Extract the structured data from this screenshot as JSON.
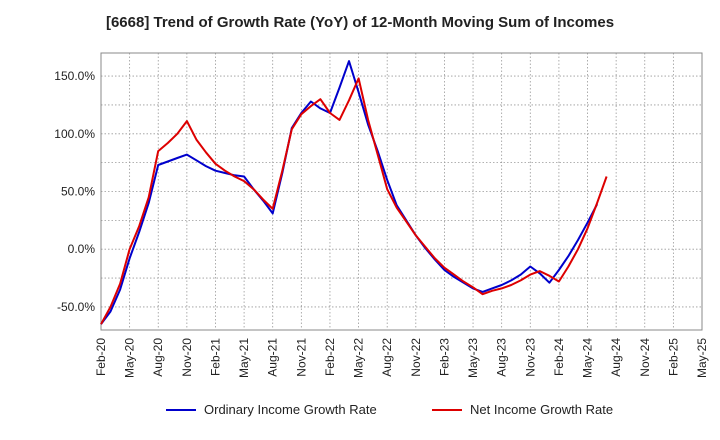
{
  "chart_data": {
    "type": "line",
    "title": "[6668]  Trend of Growth Rate (YoY) of 12-Month Moving Sum of Incomes",
    "xlabel": "",
    "ylabel": "",
    "ylim": [
      -70,
      170
    ],
    "y_ticks": [
      150,
      100,
      50,
      0,
      -50
    ],
    "y_tick_labels": [
      "150.0%",
      "100.0%",
      "50.0%",
      "0.0%",
      "-50.0%"
    ],
    "x_tick_labels": [
      "Feb-20",
      "May-20",
      "Aug-20",
      "Nov-20",
      "Feb-21",
      "May-21",
      "Aug-21",
      "Nov-21",
      "Feb-22",
      "May-22",
      "Aug-22",
      "Nov-22",
      "Feb-23",
      "May-23",
      "Aug-23",
      "Nov-23",
      "Feb-24",
      "May-24",
      "Aug-24",
      "Nov-24",
      "Feb-25",
      "May-25"
    ],
    "grid": true,
    "legend_position": "bottom",
    "series": [
      {
        "name": "Ordinary Income Growth Rate",
        "color": "#0000cc",
        "values": [
          -65,
          -54,
          -35,
          -8,
          15,
          40,
          73,
          76,
          79,
          82,
          77,
          72,
          68,
          66,
          64,
          63,
          52,
          42,
          31,
          66,
          105,
          118,
          128,
          122,
          118,
          140,
          163,
          136,
          108,
          85,
          60,
          38,
          25,
          12,
          1,
          -9,
          -18,
          -24,
          -29,
          -34,
          -37,
          -34,
          -31,
          -27,
          -22,
          -15,
          -21,
          -29,
          -18,
          -6,
          8,
          23,
          39
        ],
        "value_suffix": "%"
      },
      {
        "name": "Net Income Growth Rate",
        "color": "#dd0000",
        "values": [
          -65,
          -50,
          -30,
          0,
          20,
          45,
          85,
          92,
          100,
          111,
          95,
          84,
          74,
          68,
          63,
          59,
          52,
          43,
          35,
          68,
          104,
          117,
          124,
          130,
          118,
          112,
          129,
          148,
          112,
          82,
          52,
          36,
          24,
          12,
          2,
          -8,
          -16,
          -22,
          -28,
          -33,
          -39,
          -36,
          -34,
          -31,
          -27,
          -22,
          -19,
          -23,
          -28,
          -15,
          0,
          18,
          40,
          63
        ],
        "value_suffix": "%"
      }
    ]
  }
}
